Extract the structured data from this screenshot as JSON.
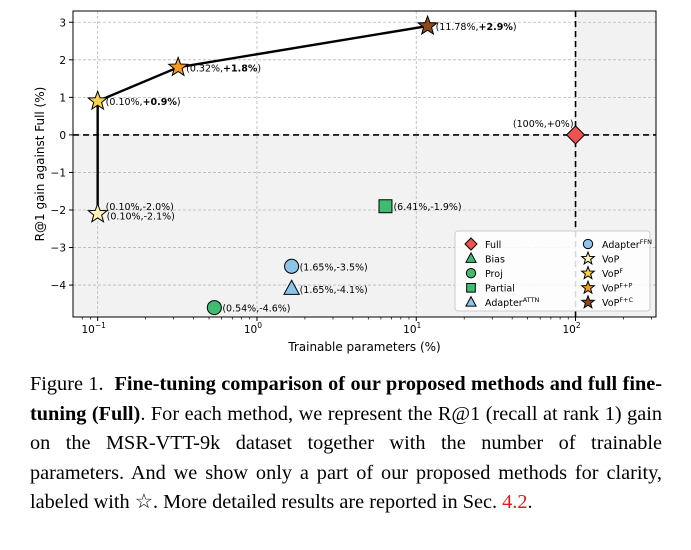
{
  "chart_data": {
    "type": "scatter",
    "xscale": "log",
    "xlim": [
      0.07,
      320
    ],
    "ylim": [
      -4.85,
      3.3
    ],
    "xlabel": "Trainable parameters (%)",
    "ylabel": "R@1 gain against Full (%)",
    "x_ticks": [
      {
        "value": 0.1,
        "base": "10",
        "exp": "−1"
      },
      {
        "value": 1,
        "base": "10",
        "exp": "0"
      },
      {
        "value": 10,
        "base": "10",
        "exp": "1"
      },
      {
        "value": 100,
        "base": "10",
        "exp": "2"
      }
    ],
    "y_ticks": [
      {
        "value": 3,
        "label": "3"
      },
      {
        "value": 2,
        "label": "2"
      },
      {
        "value": 1,
        "label": "1"
      },
      {
        "value": 0,
        "label": "0"
      },
      {
        "value": -1,
        "label": "−1"
      },
      {
        "value": -2,
        "label": "−2"
      },
      {
        "value": -3,
        "label": "−3"
      },
      {
        "value": -4,
        "label": "−4"
      }
    ],
    "grid": true,
    "reference_lines": {
      "x": 100,
      "y": 0
    },
    "vop_line": [
      {
        "x": 0.1,
        "y": -2.1
      },
      {
        "x": 0.1,
        "y": 0.9
      },
      {
        "x": 0.32,
        "y": 1.8
      },
      {
        "x": 11.78,
        "y": 2.9
      }
    ],
    "points": [
      {
        "series": "Full",
        "marker": "diamond",
        "color": "#ef5350",
        "x": 100,
        "y": 0,
        "label": "(100%,+0%)",
        "label_pos": "left-above"
      },
      {
        "series": "Partial",
        "marker": "square",
        "color": "#3ebc70",
        "x": 6.41,
        "y": -1.9,
        "label": "(6.41%,-1.9%)",
        "label_pos": "right"
      },
      {
        "series": "Proj",
        "marker": "circle",
        "color": "#3ebc70",
        "x": 0.54,
        "y": -4.6,
        "label": "(0.54%,-4.6%)",
        "label_pos": "right"
      },
      {
        "series": "AdapterFFN",
        "marker": "circle",
        "color": "#8ec3ea",
        "x": 1.65,
        "y": -3.5,
        "label": "(1.65%,-3.5%)",
        "label_pos": "right"
      },
      {
        "series": "AdapterATTN",
        "marker": "triangle",
        "color": "#8ec3ea",
        "x": 1.65,
        "y": -4.1,
        "label": "(1.65%,-4.1%)",
        "label_pos": "right"
      },
      {
        "series": "VoP",
        "marker": "star",
        "color": "#fff4b8",
        "x": 0.1,
        "y": -2.1,
        "label": "(0.10%,-2.1%)",
        "label_pos": "right"
      },
      {
        "series": "VoP",
        "marker": "none",
        "color": "#fff4b8",
        "x": 0.1,
        "y": -2.0,
        "label": "(0.10%,-2.0%)",
        "label_pos": "right-above"
      },
      {
        "series": "VoPF",
        "marker": "star",
        "color": "#f7d24c",
        "x": 0.1,
        "y": 0.9,
        "label_pre": "(0.10%,",
        "label_bold": "+0.9%",
        "label_post": ")",
        "label_pos": "right"
      },
      {
        "series": "VoPF+P",
        "marker": "star",
        "color": "#f59a1d",
        "x": 0.32,
        "y": 1.8,
        "label_pre": "(0.32%,",
        "label_bold": "+1.8%",
        "label_post": ")",
        "label_pos": "right"
      },
      {
        "series": "VoPF+C",
        "marker": "star",
        "color": "#8c4a1a",
        "x": 11.78,
        "y": 2.9,
        "label_pre": "(11.78%,",
        "label_bold": "+2.9%",
        "label_post": ")",
        "label_pos": "right"
      }
    ],
    "legend": {
      "placement": "lower-right",
      "columns": [
        [
          {
            "marker": "diamond",
            "color": "#ef5350",
            "name": "Full"
          },
          {
            "marker": "triangle",
            "color": "#3ebc70",
            "name": "Bias"
          },
          {
            "marker": "circle",
            "color": "#3ebc70",
            "name": "Proj"
          },
          {
            "marker": "square",
            "color": "#3ebc70",
            "name": "Partial"
          },
          {
            "marker": "triangle",
            "color": "#8ec3ea",
            "name": "Adapter",
            "sup": "ATTN"
          }
        ],
        [
          {
            "marker": "circle",
            "color": "#8ec3ea",
            "name": "Adapter",
            "sup": "FFN"
          },
          {
            "marker": "star",
            "color": "#fff4b8",
            "name": "VoP",
            "sup": ""
          },
          {
            "marker": "star",
            "color": "#f7d24c",
            "name": "VoP",
            "sup": "F"
          },
          {
            "marker": "star",
            "color": "#f59a1d",
            "name": "VoP",
            "sup": "F+P"
          },
          {
            "marker": "star",
            "color": "#8c4a1a",
            "name": "VoP",
            "sup": "F+C"
          }
        ]
      ]
    }
  },
  "caption": {
    "figure_label": "Figure 1.",
    "bold_title": "Fine-tuning comparison of our proposed methods and full fine-tuning (Full)",
    "text_1": ". For each method, we represent the R@1 (recall at rank 1) gain on the MSR-VTT-9k dataset together with the number of trainable parameters. And we show only a part of our proposed methods for clarity, labeled with ",
    "star_symbol": "☆",
    "text_2": ". More detailed results are reported in Sec. ",
    "section_ref": "4.2",
    "text_3": "."
  }
}
